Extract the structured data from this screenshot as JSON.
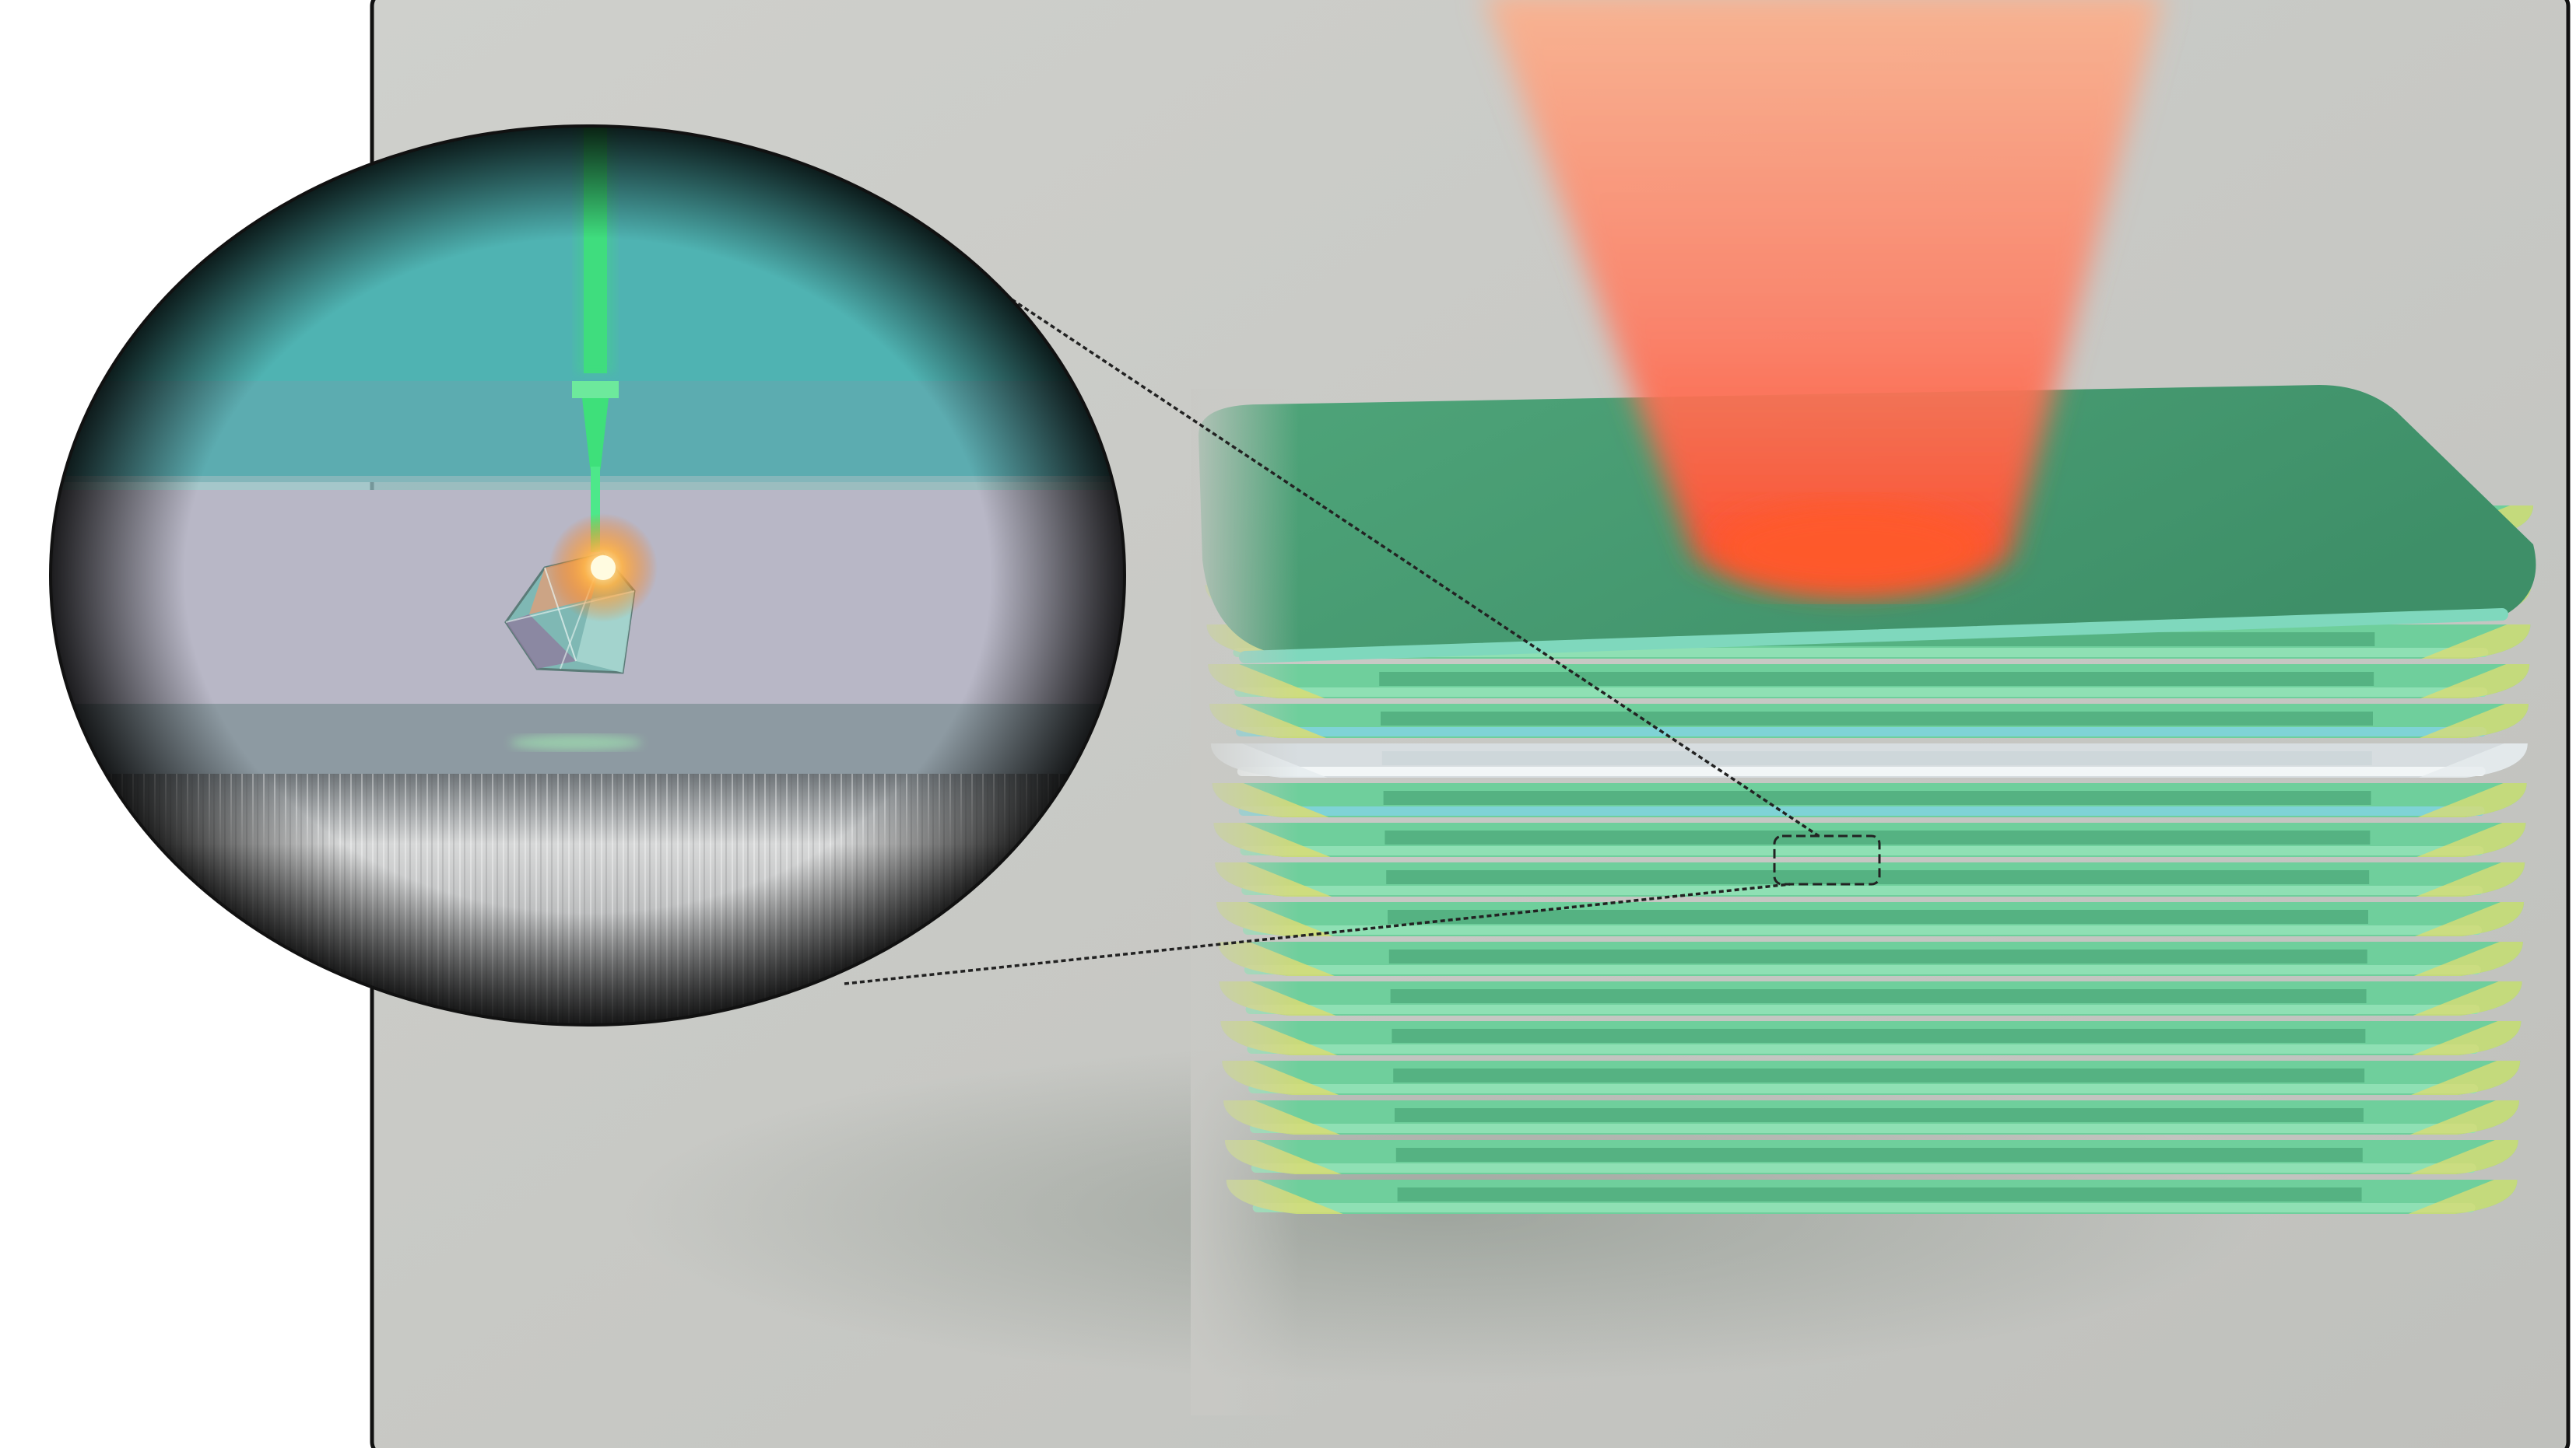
{
  "figure": {
    "colors": {
      "background": "#ffffff",
      "panel": "#c9cac6",
      "panel_border": "#111111",
      "layer_green": "#6fcf9c",
      "layer_green_dark": "#3f9a6d",
      "layer_yellow": "#d9dc74",
      "layer_cyan": "#7fd3d6",
      "laser_red": "#ff5a4a",
      "laser_green": "#3ee07a",
      "inset_teal": "#4fb3b3",
      "inset_lavender": "#b9b8c8",
      "inset_steel": "#9a9c9e"
    }
  }
}
